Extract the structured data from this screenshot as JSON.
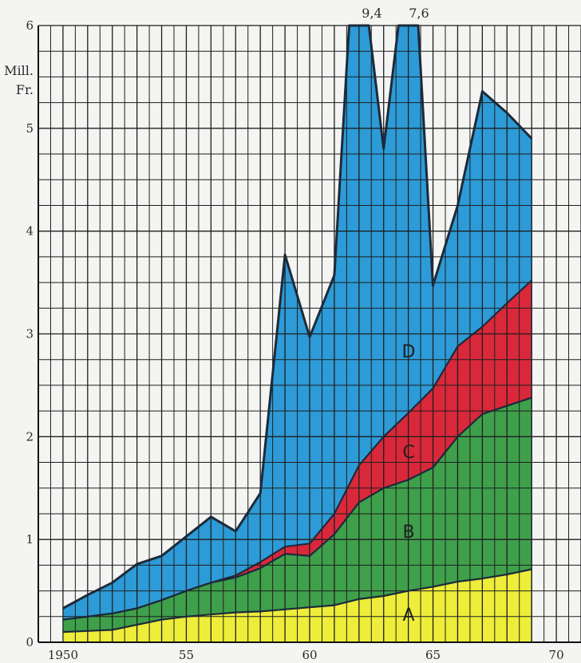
{
  "chart_data": {
    "type": "area",
    "stacked": true,
    "title": "",
    "xlabel": "",
    "ylabel": "Mill. Fr.",
    "ylabel_lines": [
      "Mill.",
      "Fr."
    ],
    "xlim": [
      1949,
      1971
    ],
    "ylim": [
      0,
      6
    ],
    "x_tick_labels": [
      {
        "x": 1950,
        "label": "1950"
      },
      {
        "x": 1955,
        "label": "55"
      },
      {
        "x": 1960,
        "label": "60"
      },
      {
        "x": 1965,
        "label": "65"
      },
      {
        "x": 1970,
        "label": "70"
      }
    ],
    "y_tick_labels": [
      {
        "y": 0,
        "label": "0"
      },
      {
        "y": 1,
        "label": "1"
      },
      {
        "y": 2,
        "label": "2"
      },
      {
        "y": 3,
        "label": "3"
      },
      {
        "y": 4,
        "label": "4"
      },
      {
        "y": 5,
        "label": "5"
      },
      {
        "y": 6,
        "label": "6"
      }
    ],
    "grid": true,
    "grid_x_step": 0.5,
    "grid_y_step": 0.25,
    "x": [
      1950,
      1951,
      1952,
      1953,
      1954,
      1955,
      1956,
      1957,
      1958,
      1959,
      1960,
      1961,
      1962,
      1963,
      1964,
      1965,
      1966,
      1967,
      1968,
      1969
    ],
    "series": [
      {
        "name": "A",
        "color": "#eded3a",
        "cumulative_top": [
          0.1,
          0.11,
          0.12,
          0.17,
          0.22,
          0.25,
          0.27,
          0.29,
          0.3,
          0.32,
          0.34,
          0.36,
          0.42,
          0.45,
          0.5,
          0.54,
          0.59,
          0.62,
          0.66,
          0.71
        ]
      },
      {
        "name": "B",
        "color": "#3fa04b",
        "cumulative_top": [
          0.22,
          0.25,
          0.28,
          0.33,
          0.41,
          0.5,
          0.58,
          0.63,
          0.72,
          0.86,
          0.84,
          1.05,
          1.36,
          1.5,
          1.58,
          1.7,
          2.0,
          2.22,
          2.3,
          2.38
        ]
      },
      {
        "name": "C",
        "color": "#d9283a",
        "cumulative_top": [
          0.22,
          0.25,
          0.28,
          0.33,
          0.41,
          0.5,
          0.58,
          0.65,
          0.78,
          0.93,
          0.96,
          1.25,
          1.72,
          2.0,
          2.23,
          2.47,
          2.88,
          3.07,
          3.3,
          3.52
        ]
      },
      {
        "name": "D",
        "color": "#2d9bd7",
        "cumulative_top": [
          0.33,
          0.46,
          0.58,
          0.76,
          0.84,
          1.03,
          1.22,
          1.08,
          1.45,
          3.77,
          2.97,
          3.57,
          9.4,
          4.8,
          7.6,
          3.47,
          4.25,
          5.36,
          5.15,
          4.9
        ]
      }
    ],
    "clipped_annotations": [
      {
        "series": "D",
        "x": 1962,
        "value": 9.4,
        "label": "9,4"
      },
      {
        "series": "D",
        "x": 1964,
        "value": 7.6,
        "label": "7,6"
      }
    ]
  }
}
